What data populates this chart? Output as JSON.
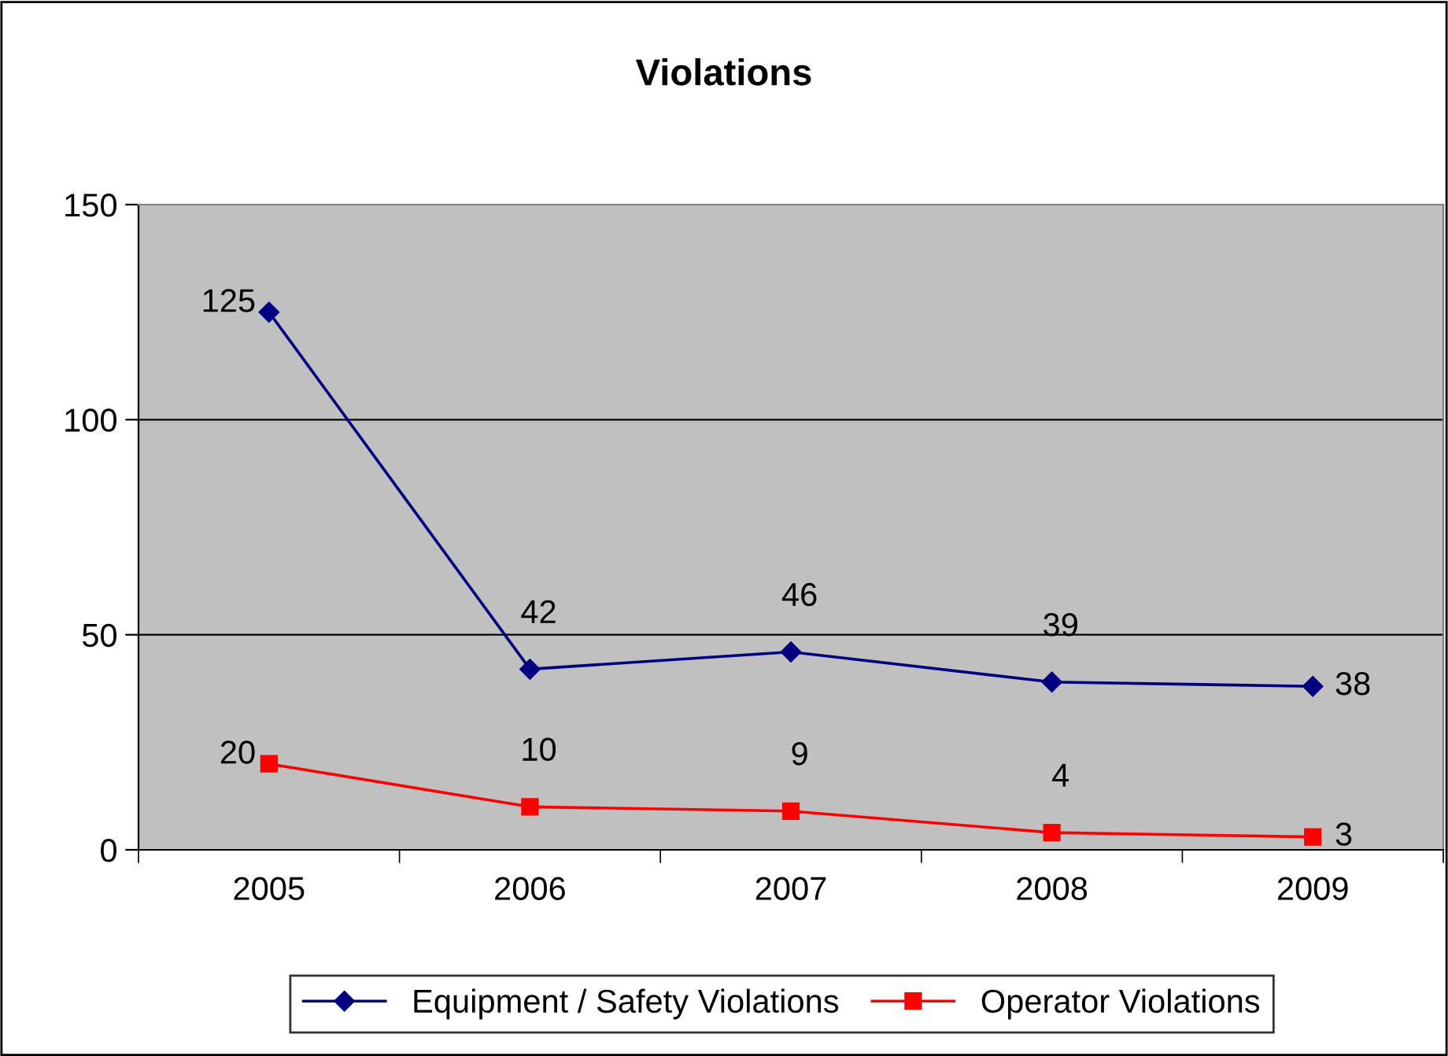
{
  "chart_data": {
    "type": "line",
    "title": "Violations",
    "categories": [
      "2005",
      "2006",
      "2007",
      "2008",
      "2009"
    ],
    "series": [
      {
        "name": "Equipment / Safety Violations",
        "color": "#000080",
        "marker": "diamond",
        "values": [
          125,
          42,
          46,
          39,
          38
        ]
      },
      {
        "name": "Operator Violations",
        "color": "#ff0000",
        "marker": "square",
        "values": [
          20,
          10,
          9,
          4,
          3
        ]
      }
    ],
    "ylim": [
      0,
      150
    ],
    "yticks": [
      0,
      50,
      100,
      150
    ],
    "grid": "y",
    "legend": "bottom",
    "data_labels": true
  }
}
